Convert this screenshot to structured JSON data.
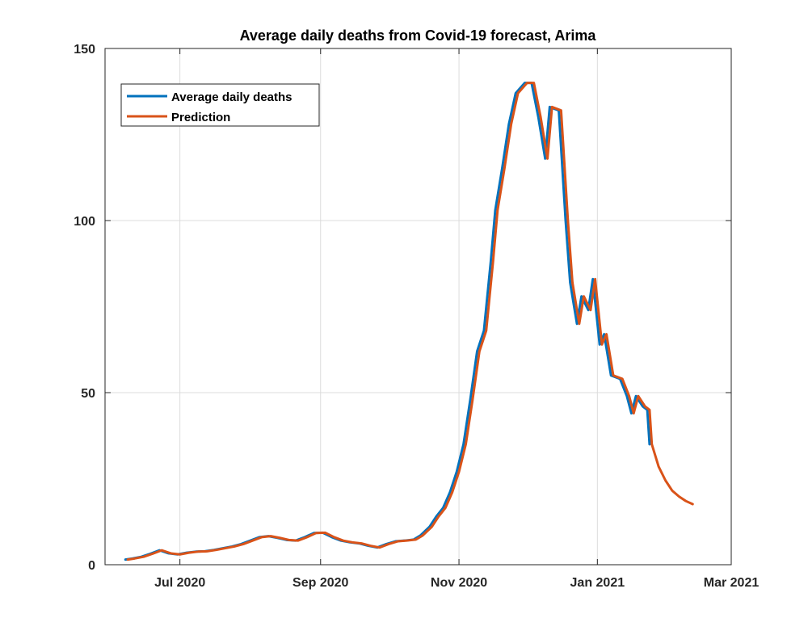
{
  "chart_data": {
    "type": "line",
    "title": "Average daily deaths from Covid-19 forecast, Arima",
    "xlabel": "",
    "ylabel": "",
    "x_axis": {
      "type": "date",
      "range": [
        "2020-05-29",
        "2021-03-01"
      ],
      "ticks": [
        {
          "date": "2020-07-01",
          "label": "Jul 2020"
        },
        {
          "date": "2020-09-01",
          "label": "Sep 2020"
        },
        {
          "date": "2020-11-01",
          "label": "Nov 2020"
        },
        {
          "date": "2021-01-01",
          "label": "Jan 2021"
        },
        {
          "date": "2021-03-01",
          "label": "Mar 2021"
        }
      ]
    },
    "y_axis": {
      "range": [
        0,
        150
      ],
      "ticks": [
        {
          "value": 0,
          "label": "0"
        },
        {
          "value": 50,
          "label": "50"
        },
        {
          "value": 100,
          "label": "100"
        },
        {
          "value": 150,
          "label": "150"
        }
      ]
    },
    "grid": true,
    "legend": {
      "placement": "top-left"
    },
    "series": [
      {
        "name": "Average daily deaths",
        "color": "#0072BD",
        "points": [
          [
            "2020-06-07",
            1.5
          ],
          [
            "2020-06-10",
            1.8
          ],
          [
            "2020-06-14",
            2.3
          ],
          [
            "2020-06-18",
            3.2
          ],
          [
            "2020-06-22",
            4.2
          ],
          [
            "2020-06-26",
            3.3
          ],
          [
            "2020-06-30",
            3.0
          ],
          [
            "2020-07-04",
            3.5
          ],
          [
            "2020-07-08",
            3.8
          ],
          [
            "2020-07-12",
            3.9
          ],
          [
            "2020-07-16",
            4.3
          ],
          [
            "2020-07-20",
            4.8
          ],
          [
            "2020-07-24",
            5.3
          ],
          [
            "2020-07-28",
            6.0
          ],
          [
            "2020-08-01",
            7.0
          ],
          [
            "2020-08-05",
            8.0
          ],
          [
            "2020-08-09",
            8.3
          ],
          [
            "2020-08-13",
            7.8
          ],
          [
            "2020-08-17",
            7.2
          ],
          [
            "2020-08-21",
            7.0
          ],
          [
            "2020-08-25",
            8.0
          ],
          [
            "2020-08-29",
            9.2
          ],
          [
            "2020-09-02",
            9.3
          ],
          [
            "2020-09-06",
            8.0
          ],
          [
            "2020-09-10",
            7.0
          ],
          [
            "2020-09-14",
            6.5
          ],
          [
            "2020-09-18",
            6.2
          ],
          [
            "2020-09-22",
            5.5
          ],
          [
            "2020-09-26",
            5.0
          ],
          [
            "2020-09-30",
            6.0
          ],
          [
            "2020-10-04",
            6.8
          ],
          [
            "2020-10-08",
            7.0
          ],
          [
            "2020-10-12",
            7.3
          ],
          [
            "2020-10-15",
            8.5
          ],
          [
            "2020-10-19",
            11.0
          ],
          [
            "2020-10-22",
            14.0
          ],
          [
            "2020-10-25",
            16.5
          ],
          [
            "2020-10-28",
            21.0
          ],
          [
            "2020-10-31",
            27.0
          ],
          [
            "2020-11-03",
            35.0
          ],
          [
            "2020-11-06",
            48.0
          ],
          [
            "2020-11-09",
            62.0
          ],
          [
            "2020-11-12",
            68.0
          ],
          [
            "2020-11-15",
            88.0
          ],
          [
            "2020-11-17",
            103.0
          ],
          [
            "2020-11-20",
            115.0
          ],
          [
            "2020-11-23",
            128.0
          ],
          [
            "2020-11-26",
            137.0
          ],
          [
            "2020-11-30",
            140.0
          ],
          [
            "2020-12-03",
            140.0
          ],
          [
            "2020-12-06",
            130.0
          ],
          [
            "2020-12-09",
            118.0
          ],
          [
            "2020-12-11",
            133.0
          ],
          [
            "2020-12-15",
            132.0
          ],
          [
            "2020-12-18",
            100.0
          ],
          [
            "2020-12-20",
            82.0
          ],
          [
            "2020-12-23",
            70.0
          ],
          [
            "2020-12-25",
            78.0
          ],
          [
            "2020-12-28",
            74.0
          ],
          [
            "2020-12-30",
            83.0
          ],
          [
            "2021-01-02",
            64.0
          ],
          [
            "2021-01-04",
            67.0
          ],
          [
            "2021-01-07",
            55.0
          ],
          [
            "2021-01-11",
            54.0
          ],
          [
            "2021-01-14",
            49.0
          ],
          [
            "2021-01-16",
            44.0
          ],
          [
            "2021-01-18",
            49.0
          ],
          [
            "2021-01-21",
            46.0
          ],
          [
            "2021-01-23",
            45.0
          ],
          [
            "2021-01-24",
            35.0
          ]
        ]
      },
      {
        "name": "Prediction",
        "color": "#D95319",
        "points": [
          [
            "2020-06-08",
            1.5
          ],
          [
            "2020-06-11",
            1.8
          ],
          [
            "2020-06-15",
            2.3
          ],
          [
            "2020-06-19",
            3.2
          ],
          [
            "2020-06-23",
            4.2
          ],
          [
            "2020-06-27",
            3.3
          ],
          [
            "2020-07-01",
            3.0
          ],
          [
            "2020-07-05",
            3.5
          ],
          [
            "2020-07-09",
            3.8
          ],
          [
            "2020-07-13",
            3.9
          ],
          [
            "2020-07-17",
            4.3
          ],
          [
            "2020-07-21",
            4.8
          ],
          [
            "2020-07-25",
            5.3
          ],
          [
            "2020-07-29",
            6.0
          ],
          [
            "2020-08-02",
            7.0
          ],
          [
            "2020-08-06",
            8.0
          ],
          [
            "2020-08-10",
            8.3
          ],
          [
            "2020-08-14",
            7.8
          ],
          [
            "2020-08-18",
            7.2
          ],
          [
            "2020-08-22",
            7.0
          ],
          [
            "2020-08-26",
            8.0
          ],
          [
            "2020-08-30",
            9.2
          ],
          [
            "2020-09-03",
            9.3
          ],
          [
            "2020-09-07",
            8.0
          ],
          [
            "2020-09-11",
            7.0
          ],
          [
            "2020-09-15",
            6.5
          ],
          [
            "2020-09-19",
            6.2
          ],
          [
            "2020-09-23",
            5.5
          ],
          [
            "2020-09-27",
            5.0
          ],
          [
            "2020-10-01",
            6.0
          ],
          [
            "2020-10-05",
            6.8
          ],
          [
            "2020-10-09",
            7.0
          ],
          [
            "2020-10-13",
            7.3
          ],
          [
            "2020-10-16",
            8.5
          ],
          [
            "2020-10-20",
            11.0
          ],
          [
            "2020-10-23",
            14.0
          ],
          [
            "2020-10-26",
            16.5
          ],
          [
            "2020-10-29",
            21.0
          ],
          [
            "2020-11-01",
            27.0
          ],
          [
            "2020-11-04",
            35.0
          ],
          [
            "2020-11-07",
            48.0
          ],
          [
            "2020-11-10",
            62.0
          ],
          [
            "2020-11-13",
            68.0
          ],
          [
            "2020-11-16",
            88.0
          ],
          [
            "2020-11-18",
            103.0
          ],
          [
            "2020-11-21",
            115.0
          ],
          [
            "2020-11-24",
            128.0
          ],
          [
            "2020-11-27",
            137.0
          ],
          [
            "2020-12-01",
            140.0
          ],
          [
            "2020-12-04",
            140.0
          ],
          [
            "2020-12-07",
            130.0
          ],
          [
            "2020-12-10",
            118.0
          ],
          [
            "2020-12-12",
            133.0
          ],
          [
            "2020-12-16",
            132.0
          ],
          [
            "2020-12-19",
            100.0
          ],
          [
            "2020-12-21",
            82.0
          ],
          [
            "2020-12-24",
            70.0
          ],
          [
            "2020-12-26",
            78.0
          ],
          [
            "2020-12-29",
            74.0
          ],
          [
            "2020-12-31",
            83.0
          ],
          [
            "2021-01-03",
            64.0
          ],
          [
            "2021-01-05",
            67.0
          ],
          [
            "2021-01-08",
            55.0
          ],
          [
            "2021-01-12",
            54.0
          ],
          [
            "2021-01-15",
            49.0
          ],
          [
            "2021-01-17",
            44.0
          ],
          [
            "2021-01-19",
            49.0
          ],
          [
            "2021-01-22",
            46.0
          ],
          [
            "2021-01-24",
            45.0
          ],
          [
            "2021-01-25",
            35.0
          ],
          [
            "2021-01-28",
            28.5
          ],
          [
            "2021-01-31",
            24.5
          ],
          [
            "2021-02-03",
            21.5
          ],
          [
            "2021-02-06",
            19.8
          ],
          [
            "2021-02-09",
            18.5
          ],
          [
            "2021-02-12",
            17.6
          ]
        ]
      }
    ]
  }
}
